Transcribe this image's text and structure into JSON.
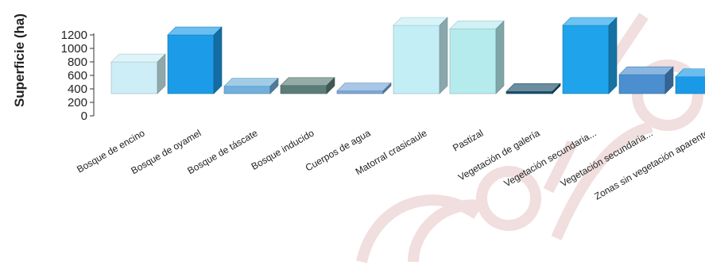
{
  "chart_data": {
    "type": "bar",
    "ylabel": "Superficie (ha)",
    "ylim": [
      0,
      1200
    ],
    "yticks": [
      0,
      200,
      400,
      600,
      800,
      1000,
      1200
    ],
    "categories": [
      "Bosque de encino",
      "Bosque de oyamel",
      "Bosque de táscate",
      "Bosque inducido",
      "Cuerpos de agua",
      "Matorral crasicaule",
      "Pastizal",
      "Vegetación de galería",
      "Vegetación secundaria...",
      "Vegetación secundaria...",
      "Zonas sin vegetación aparente"
    ],
    "values": [
      470,
      870,
      110,
      120,
      40,
      1140,
      960,
      30,
      1080,
      280,
      250
    ],
    "colors": [
      "#cdeef6",
      "#1c9be8",
      "#6fb0dc",
      "#5b7d78",
      "#7aa8d8",
      "#c3eef6",
      "#b6ebee",
      "#1a4f6c",
      "#1fa3ea",
      "#4b8fd0",
      "#1a9ae6"
    ],
    "style": "3d-bar",
    "grid": false,
    "legend": "none"
  }
}
